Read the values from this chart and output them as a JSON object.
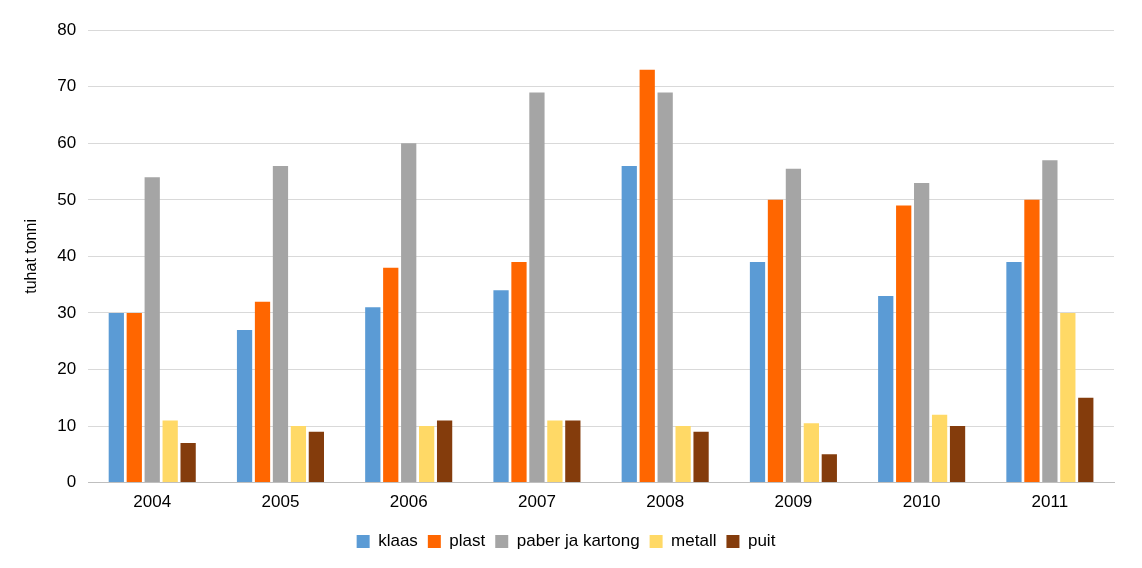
{
  "chart_data": {
    "type": "bar",
    "ylabel": "tuhat tonni",
    "categories": [
      "2004",
      "2005",
      "2006",
      "2007",
      "2008",
      "2009",
      "2010",
      "2011"
    ],
    "series": [
      {
        "name": "klaas",
        "color": "#5b9bd5",
        "values": [
          30,
          27,
          31,
          34,
          56,
          39,
          33,
          39
        ]
      },
      {
        "name": "plast",
        "color": "#ff6600",
        "values": [
          30,
          32,
          38,
          39,
          73,
          50,
          49,
          50
        ]
      },
      {
        "name": "paber ja kartong",
        "color": "#a5a5a5",
        "values": [
          54,
          56,
          60,
          69,
          69,
          55.5,
          53,
          57
        ]
      },
      {
        "name": "metall",
        "color": "#ffd966",
        "values": [
          11,
          10,
          10,
          11,
          10,
          10.5,
          12,
          30
        ]
      },
      {
        "name": "puit",
        "color": "#843c0c",
        "values": [
          7,
          9,
          11,
          11,
          9,
          5,
          10,
          15
        ]
      }
    ],
    "ylim": [
      0,
      80
    ],
    "yticks": [
      0,
      10,
      20,
      30,
      40,
      50,
      60,
      70,
      80
    ],
    "grid": "y",
    "legend": "bottom"
  }
}
